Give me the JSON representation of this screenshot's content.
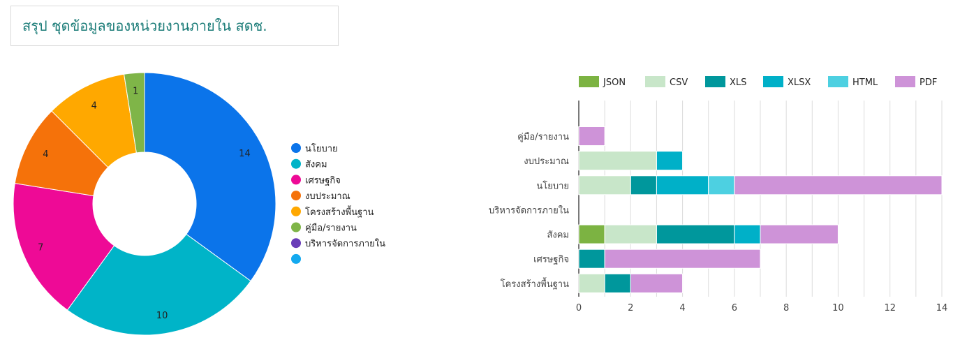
{
  "page": {
    "title": "สรุป ชุดข้อมูลของหน่วยงานภายใน สดช."
  },
  "chart_data": [
    {
      "type": "pie",
      "donut": true,
      "legend_position": "right",
      "slices": [
        {
          "name": "นโยบาย",
          "value": 14,
          "color": "#0b74ea"
        },
        {
          "name": "สังคม",
          "value": 10,
          "color": "#00b4c8"
        },
        {
          "name": "เศรษฐกิจ",
          "value": 7,
          "color": "#ee0a96"
        },
        {
          "name": "งบประมาณ",
          "value": 4,
          "color": "#f5720a"
        },
        {
          "name": "โครงสร้างพื้นฐาน",
          "value": 4,
          "color": "#ffa800"
        },
        {
          "name": "คู่มือ/รายงาน",
          "value": 1,
          "color": "#7fb548"
        },
        {
          "name": "บริหารจัดการภายใน",
          "value": 0,
          "color": "#6a3db8"
        },
        {
          "name": "",
          "value": 0,
          "color": "#14a9ef"
        }
      ]
    },
    {
      "type": "bar",
      "orientation": "horizontal",
      "stacked": true,
      "legend_position": "top",
      "grid": true,
      "categories": [
        "คู่มือ/รายงาน",
        "งบประมาณ",
        "นโยบาย",
        "บริหารจัดการภายใน",
        "สังคม",
        "เศรษฐกิจ",
        "โครงสร้างพื้นฐาน"
      ],
      "series": [
        {
          "name": "JSON",
          "color": "#7cb342",
          "values": [
            0,
            0,
            0,
            0,
            1,
            0,
            0
          ]
        },
        {
          "name": "CSV",
          "color": "#c8e6c9",
          "values": [
            0,
            3,
            2,
            0,
            2,
            0,
            1
          ]
        },
        {
          "name": "XLS",
          "color": "#00979c",
          "values": [
            0,
            0,
            1,
            0,
            3,
            1,
            1
          ]
        },
        {
          "name": "XLSX",
          "color": "#00b0c8",
          "values": [
            0,
            1,
            2,
            0,
            1,
            0,
            0
          ]
        },
        {
          "name": "HTML",
          "color": "#4dd0e1",
          "values": [
            0,
            0,
            1,
            0,
            0,
            0,
            0
          ]
        },
        {
          "name": "PDF",
          "color": "#ce93d8",
          "values": [
            1,
            0,
            8,
            0,
            3,
            6,
            2
          ]
        }
      ],
      "xlim": [
        0,
        14
      ],
      "xticks": [
        0,
        2,
        4,
        6,
        8,
        10,
        12,
        14
      ]
    }
  ]
}
